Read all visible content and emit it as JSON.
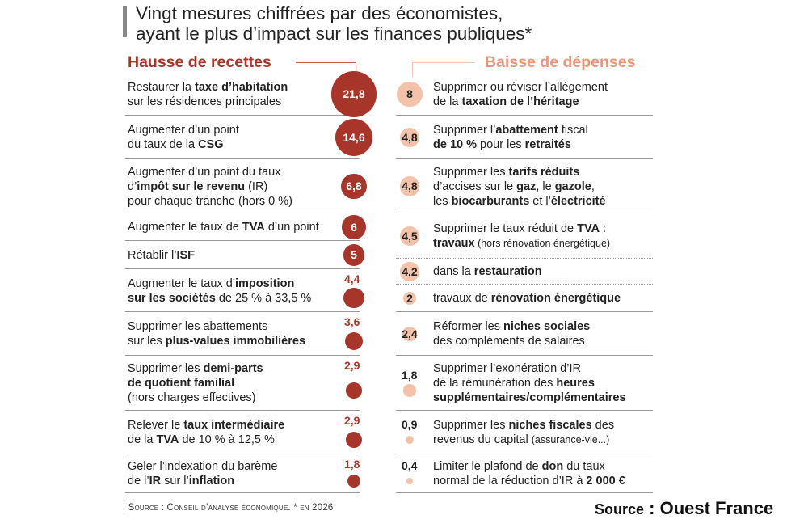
{
  "title_line1": "Vingt mesures chiffrées par des économistes,",
  "title_line2": "ayant le plus d’impact sur les finances publiques*",
  "chart_data": {
    "type": "bubble-list",
    "unit": "Md€ (impact en 2026)",
    "colors": {
      "recettes": "#a8352a",
      "depenses": "#f2c2ab",
      "depenses_heading": "#e8967a"
    },
    "left": {
      "heading": "Hausse de recettes",
      "items": [
        {
          "value": "21,8",
          "v": 21.8,
          "lines": [
            [
              {
                "t": "Restaurer la "
              },
              {
                "t": "taxe d’habitation",
                "b": 1
              }
            ],
            [
              {
                "t": "sur les résidences principales"
              }
            ]
          ]
        },
        {
          "value": "14,6",
          "v": 14.6,
          "lines": [
            [
              {
                "t": "Augmenter d’un point"
              }
            ],
            [
              {
                "t": "du taux de la "
              },
              {
                "t": "CSG",
                "b": 1
              }
            ]
          ]
        },
        {
          "value": "6,8",
          "v": 6.8,
          "lines": [
            [
              {
                "t": "Augmenter d’un point du taux"
              }
            ],
            [
              {
                "t": "d’"
              },
              {
                "t": "impôt sur le revenu",
                "b": 1
              },
              {
                "t": " (IR)"
              }
            ],
            [
              {
                "t": "pour chaque tranche (hors 0 %)"
              }
            ]
          ]
        },
        {
          "value": "6",
          "v": 6,
          "lines": [
            [
              {
                "t": "Augmenter le taux de "
              },
              {
                "t": "TVA",
                "b": 1
              },
              {
                "t": " d’un point"
              }
            ]
          ]
        },
        {
          "value": "5",
          "v": 5,
          "lines": [
            [
              {
                "t": "Rétablir l’"
              },
              {
                "t": "ISF",
                "b": 1
              }
            ]
          ]
        },
        {
          "value": "4,4",
          "v": 4.4,
          "lines": [
            [
              {
                "t": "Augmenter le taux d’"
              },
              {
                "t": "imposition",
                "b": 1
              }
            ],
            [
              {
                "t": "sur les sociétés",
                "b": 1
              },
              {
                "t": " de 25 % à 33,5 %"
              }
            ]
          ]
        },
        {
          "value": "3,6",
          "v": 3.6,
          "lines": [
            [
              {
                "t": "Supprimer les abattements"
              }
            ],
            [
              {
                "t": "sur les "
              },
              {
                "t": "plus-values immobilières",
                "b": 1
              }
            ]
          ]
        },
        {
          "value": "2,9",
          "v": 2.9,
          "lines": [
            [
              {
                "t": "Supprimer les "
              },
              {
                "t": "demi-parts",
                "b": 1
              }
            ],
            [
              {
                "t": "de quotient familial",
                "b": 1
              }
            ],
            [
              {
                "t": "(hors charges effectives)"
              }
            ]
          ]
        },
        {
          "value": "2,9",
          "v": 2.9,
          "lines": [
            [
              {
                "t": "Relever le "
              },
              {
                "t": "taux intermédiaire",
                "b": 1
              }
            ],
            [
              {
                "t": "de la "
              },
              {
                "t": "TVA",
                "b": 1
              },
              {
                "t": " de 10 % à 12,5 %"
              }
            ]
          ]
        },
        {
          "value": "1,8",
          "v": 1.8,
          "lines": [
            [
              {
                "t": "Geler l’indexation du barème"
              }
            ],
            [
              {
                "t": "de l’"
              },
              {
                "t": "IR",
                "b": 1
              },
              {
                "t": " sur l’"
              },
              {
                "t": "inflation",
                "b": 1
              }
            ]
          ]
        }
      ]
    },
    "right": {
      "heading": "Baisse de dépenses",
      "items": [
        {
          "value": "8",
          "v": 8,
          "lines": [
            [
              {
                "t": "Supprimer ou réviser l’allègement"
              }
            ],
            [
              {
                "t": "de la "
              },
              {
                "t": "taxation de l’héritage",
                "b": 1
              }
            ]
          ]
        },
        {
          "value": "4,8",
          "v": 4.8,
          "lines": [
            [
              {
                "t": "Supprimer l’"
              },
              {
                "t": "abattement",
                "b": 1
              },
              {
                "t": " fiscal"
              }
            ],
            [
              {
                "t": "de 10 %",
                "b": 1
              },
              {
                "t": " pour les "
              },
              {
                "t": "retraités",
                "b": 1
              }
            ]
          ]
        },
        {
          "value": "4,8",
          "v": 4.8,
          "lines": [
            [
              {
                "t": "Supprimer les "
              },
              {
                "t": "tarifs réduits",
                "b": 1
              }
            ],
            [
              {
                "t": "d’accises sur le "
              },
              {
                "t": "gaz",
                "b": 1
              },
              {
                "t": ", le "
              },
              {
                "t": "gazole",
                "b": 1
              },
              {
                "t": ","
              }
            ],
            [
              {
                "t": "les "
              },
              {
                "t": "biocarburants",
                "b": 1
              },
              {
                "t": " et l’"
              },
              {
                "t": "électricité",
                "b": 1
              }
            ]
          ]
        },
        {
          "value": "4,5",
          "v": 4.5,
          "lines": [
            [
              {
                "t": "Supprimer le taux réduit de "
              },
              {
                "t": "TVA",
                "b": 1
              },
              {
                "t": " :"
              }
            ],
            [
              {
                "t": "travaux",
                "b": 1
              },
              {
                "t": " (hors rénovation énergétique)",
                "s": 1
              }
            ]
          ]
        },
        {
          "value": "4,2",
          "v": 4.2,
          "lines": [
            [
              {
                "t": "dans la "
              },
              {
                "t": "restauration",
                "b": 1
              }
            ]
          ]
        },
        {
          "value": "2",
          "v": 2,
          "lines": [
            [
              {
                "t": "travaux de "
              },
              {
                "t": "rénovation énergétique",
                "b": 1
              }
            ]
          ]
        },
        {
          "value": "2,4",
          "v": 2.4,
          "lines": [
            [
              {
                "t": "Réformer les "
              },
              {
                "t": "niches sociales",
                "b": 1
              }
            ],
            [
              {
                "t": "des compléments de salaires"
              }
            ]
          ]
        },
        {
          "value": "1,8",
          "v": 1.8,
          "lines": [
            [
              {
                "t": "Supprimer l’exonération d’IR"
              }
            ],
            [
              {
                "t": "de la rémunération des "
              },
              {
                "t": "heures",
                "b": 1
              }
            ],
            [
              {
                "t": "supplémentaires/complémentaires",
                "b": 1
              }
            ]
          ]
        },
        {
          "value": "0,9",
          "v": 0.9,
          "lines": [
            [
              {
                "t": "Supprimer les "
              },
              {
                "t": "niches fiscales",
                "b": 1
              },
              {
                "t": " des"
              }
            ],
            [
              {
                "t": "revenus du capital "
              },
              {
                "t": "(assurance-vie...)",
                "s": 1
              }
            ]
          ]
        },
        {
          "value": "0,4",
          "v": 0.4,
          "lines": [
            [
              {
                "t": "Limiter le plafond de "
              },
              {
                "t": "don",
                "b": 1
              },
              {
                "t": " du taux"
              }
            ],
            [
              {
                "t": "normal de la réduction d’IR à "
              },
              {
                "t": "2 000 €",
                "b": 1
              }
            ]
          ]
        }
      ]
    }
  },
  "source_note": "| Source : Conseil d’analyse économique. * en 2026",
  "credit_label": "Source",
  "credit_value": " : Ouest France"
}
